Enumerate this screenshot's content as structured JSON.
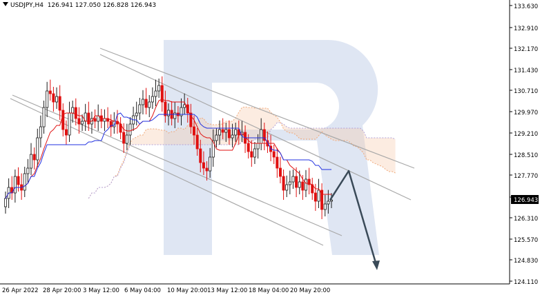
{
  "header": {
    "symbol": "USDJPY,H4",
    "ohlc": "126.941 127.050 126.828 126.943"
  },
  "colors": {
    "up_candle": "#1a1a1a",
    "down_candle": "#e01010",
    "tenkan": "#e01010",
    "kijun": "#1f2fe0",
    "cloud_outline": "#f0a878",
    "cloud_alt": "#b0a0d8",
    "channel": "#a8a8a8",
    "forecast_arrow": "#3a4a58",
    "watermark": "#dfe6f3",
    "current_price_bg": "#000000"
  },
  "chart_data": {
    "type": "candlestick",
    "symbol": "USDJPY",
    "timeframe": "H4",
    "y_ticks": [
      "133.630",
      "132.910",
      "132.170",
      "131.430",
      "130.710",
      "129.970",
      "129.210",
      "128.510",
      "127.770",
      "126.943",
      "126.310",
      "125.570",
      "124.830",
      "124.110"
    ],
    "y_range": [
      123.9,
      133.9
    ],
    "x_ticks": [
      "26 Apr 2022",
      "28 Apr 20:00",
      "3 May 12:00",
      "6 May 04:00",
      "10 May 20:00",
      "13 May 12:00",
      "18 May 04:00",
      "20 May 20:00"
    ],
    "current_price": "126.943",
    "closes": [
      127.0,
      127.4,
      127.2,
      127.8,
      127.5,
      127.3,
      127.9,
      128.1,
      128.6,
      128.4,
      129.2,
      129.6,
      130.3,
      130.9,
      130.8,
      130.5,
      130.7,
      130.2,
      129.5,
      129.3,
      130.1,
      130.3,
      129.9,
      129.7,
      129.8,
      130.1,
      129.7,
      129.9,
      129.8,
      130.0,
      129.8,
      129.9,
      129.8,
      129.6,
      129.8,
      129.7,
      129.4,
      129.0,
      129.3,
      129.7,
      130.0,
      130.1,
      130.4,
      130.6,
      130.3,
      130.5,
      130.7,
      130.9,
      131.1,
      130.5,
      130.0,
      130.2,
      129.9,
      130.1,
      130.0,
      130.3,
      130.4,
      130.1,
      129.6,
      129.3,
      128.8,
      128.3,
      128.1,
      128.0,
      128.5,
      129.1,
      129.3,
      129.5,
      129.4,
      129.5,
      129.2,
      129.3,
      129.5,
      129.3,
      129.4,
      129.0,
      128.7,
      128.5,
      128.8,
      129.0,
      129.5,
      129.1,
      128.9,
      128.7,
      128.5,
      128.1,
      127.8,
      127.3,
      127.5,
      127.6,
      127.8,
      127.4,
      127.6,
      127.3,
      127.7,
      127.5,
      127.2,
      126.9,
      127.3,
      126.6,
      126.8,
      126.9,
      126.943
    ],
    "overlays": [
      "Ichimoku cloud",
      "Tenkan-sen",
      "Kijun-sen",
      "descending channel lines",
      "forecast arrow"
    ],
    "forecast": {
      "up_to": 128.0,
      "then_down_to": 124.5
    },
    "grid": false
  }
}
